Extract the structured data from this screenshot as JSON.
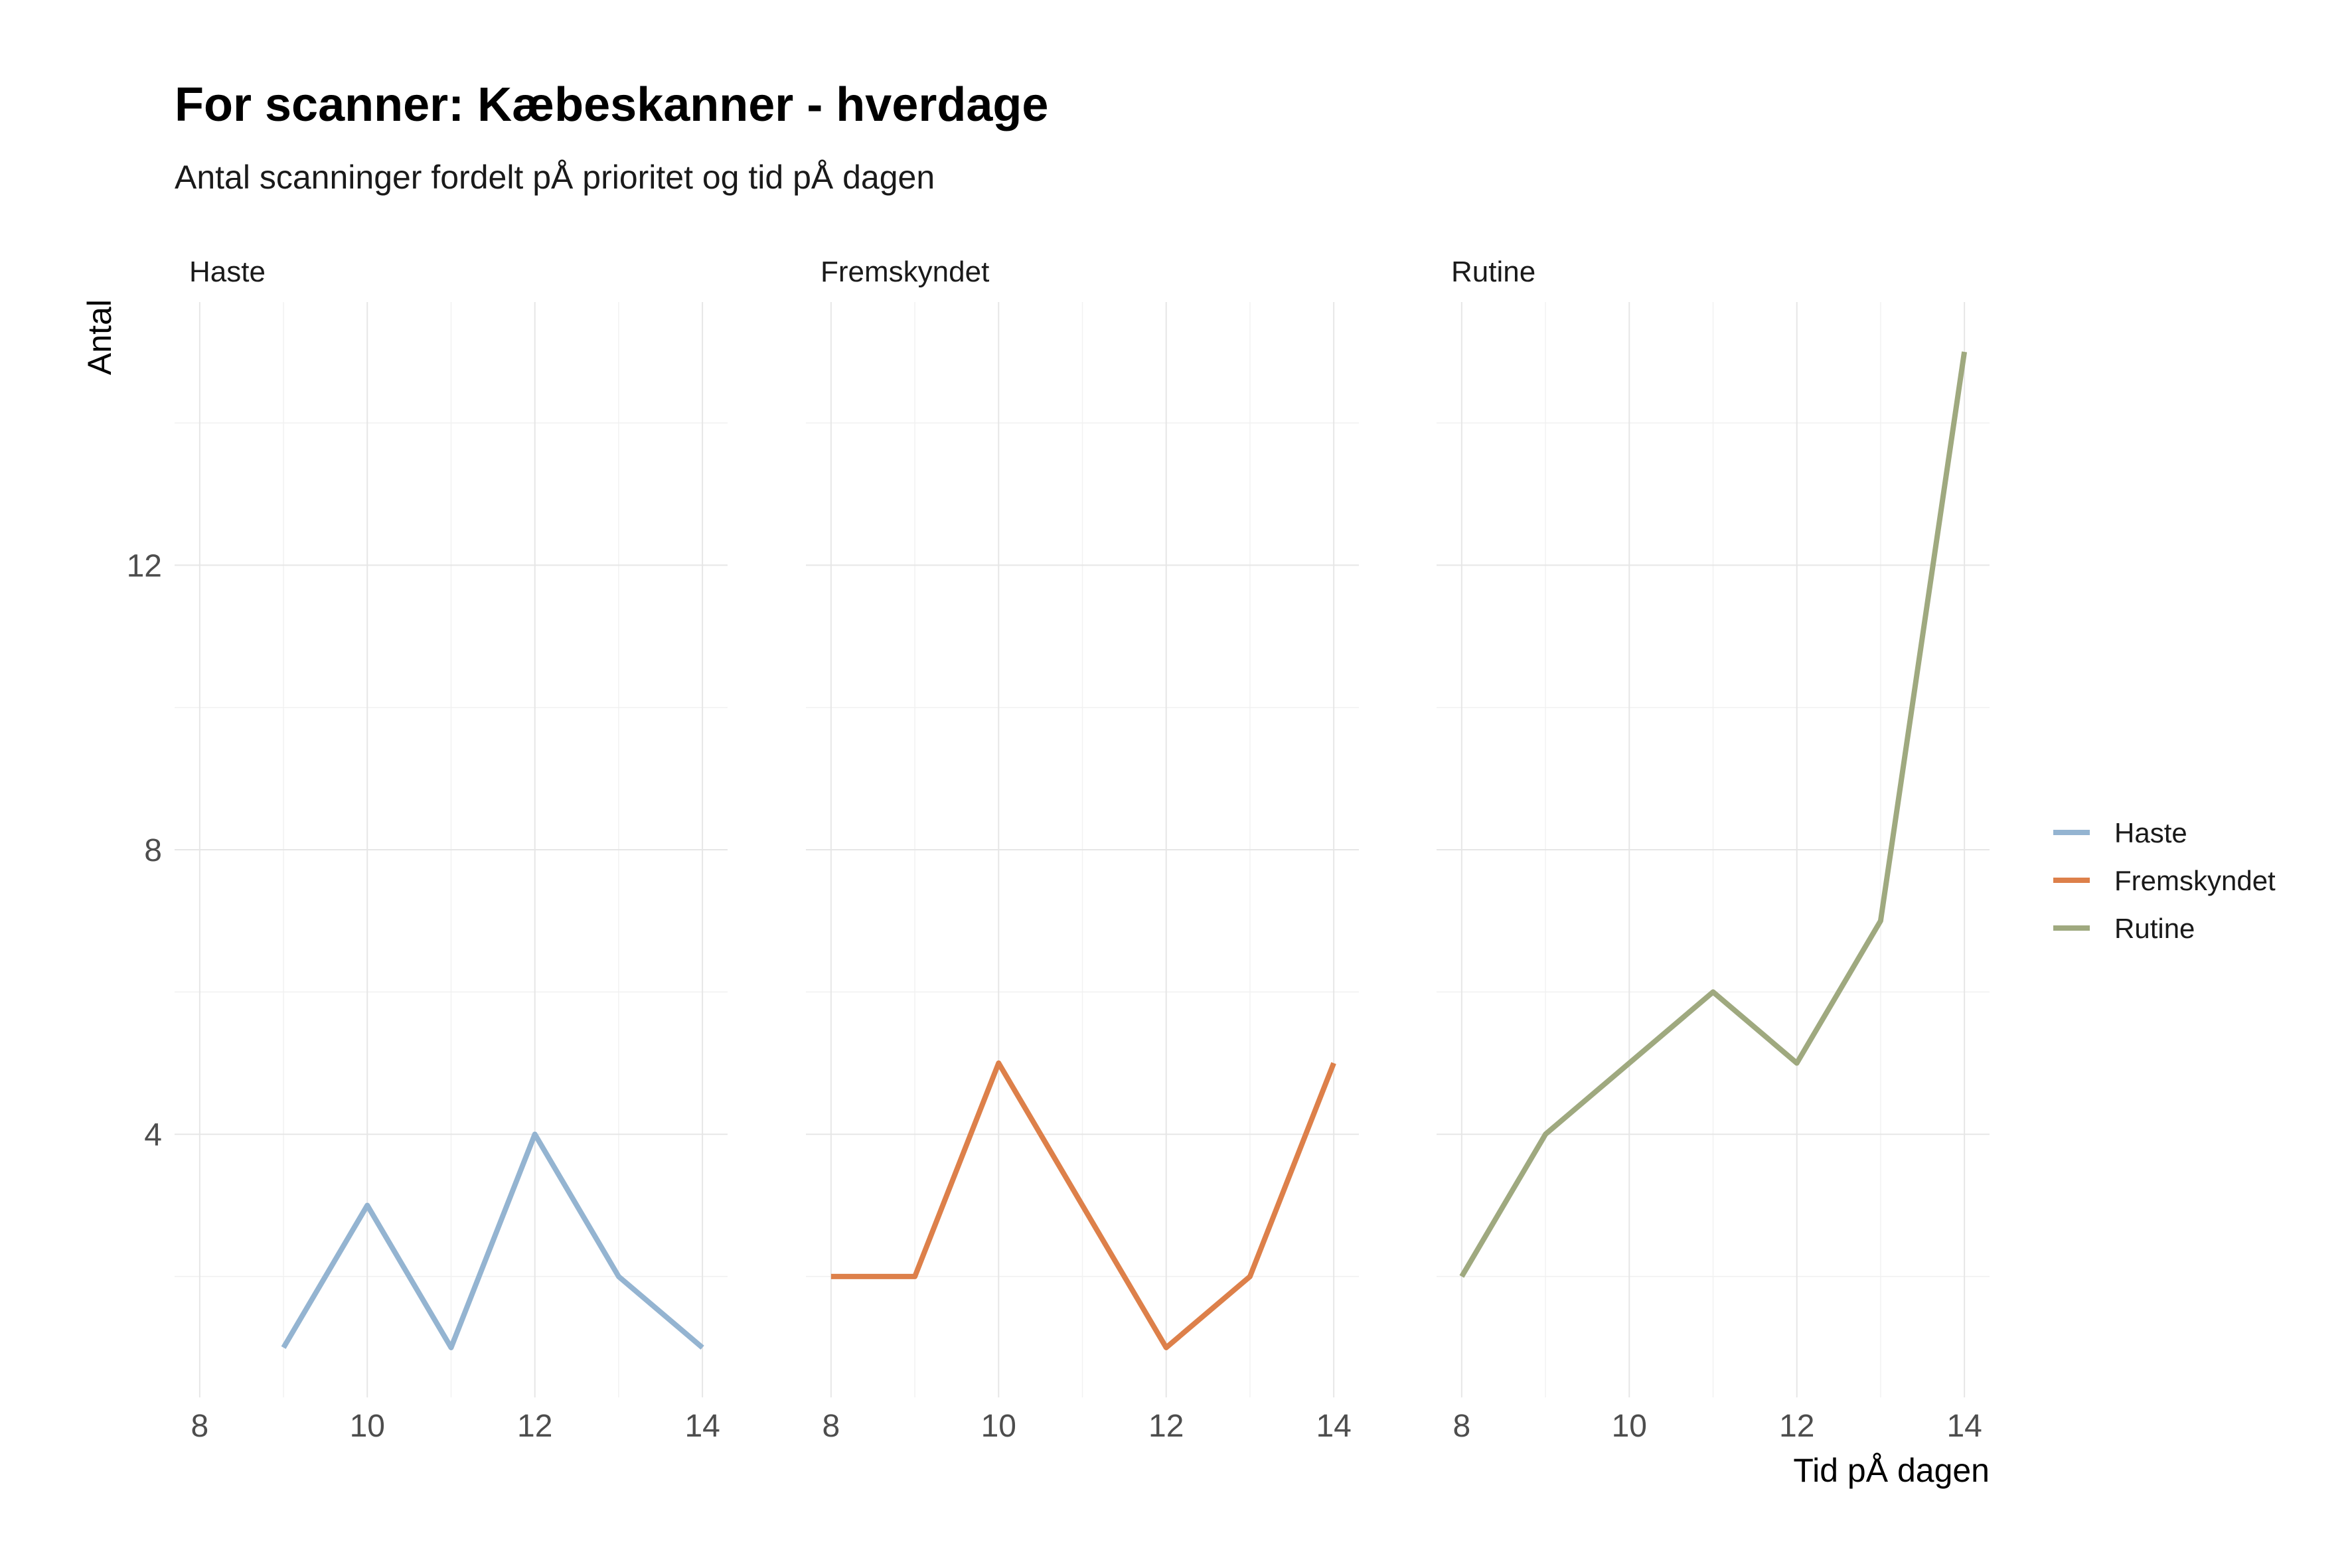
{
  "chart_data": {
    "type": "line",
    "title": "For scanner: Kæbeskanner - hverdage",
    "subtitle": "Antal scanninger fordelt pÅ prioritet og tid pÅ dagen",
    "xlabel": "Tid pÅ dagen",
    "ylabel": "Antal",
    "xlim": [
      7.7,
      14.3
    ],
    "ylim": [
      0.3,
      15.7
    ],
    "x_ticks": [
      8,
      10,
      12,
      14
    ],
    "y_ticks": [
      4,
      8,
      12
    ],
    "grid": true,
    "legend_position": "right",
    "facets": [
      {
        "label": "Haste",
        "series": "Haste"
      },
      {
        "label": "Fremskyndet",
        "series": "Fremskyndet"
      },
      {
        "label": "Rutine",
        "series": "Rutine"
      }
    ],
    "series": [
      {
        "name": "Haste",
        "color": "#94b4d1",
        "x": [
          9,
          10,
          11,
          12,
          13,
          14
        ],
        "values": [
          1,
          3,
          1,
          4,
          2,
          1
        ]
      },
      {
        "name": "Fremskyndet",
        "color": "#dd804a",
        "x": [
          8,
          9,
          10,
          11,
          12,
          13,
          14
        ],
        "values": [
          2,
          2,
          5,
          3,
          1,
          2,
          5
        ]
      },
      {
        "name": "Rutine",
        "color": "#9fa97f",
        "x": [
          8,
          9,
          10,
          11,
          12,
          13,
          14
        ],
        "values": [
          2,
          4,
          5,
          6,
          5,
          7,
          15
        ]
      }
    ]
  }
}
